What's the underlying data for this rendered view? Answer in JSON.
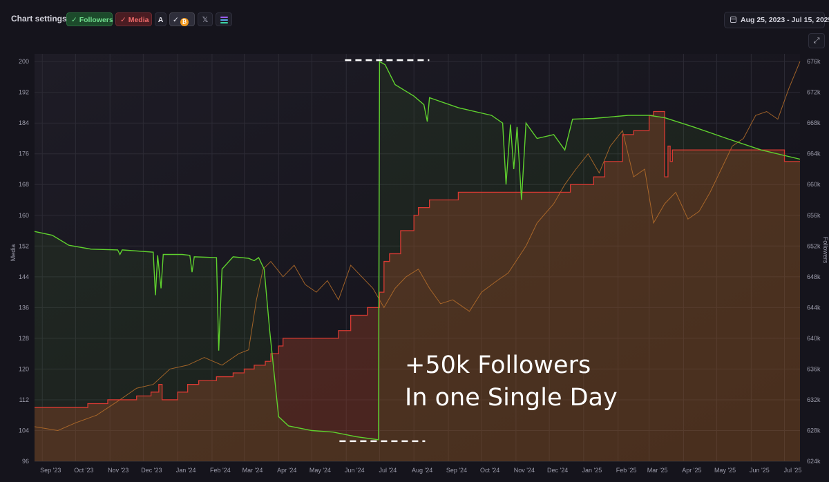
{
  "header": {
    "settings_label": "Chart settings:",
    "followers_label": "Followers",
    "media_label": "Media",
    "a_label": "A",
    "coin_check": "✓",
    "x_label": "𝕏",
    "date_range": "Aug 25, 2023 - Jul 15, 2025",
    "expand_icon": "⤢"
  },
  "colors": {
    "followers": "#5fd12e",
    "media": "#d93a33",
    "media_fill": "#8a3a26",
    "price": "#b8702a",
    "annotation": "#ffffff",
    "grid": "#2c2b35",
    "background": "#15141c"
  },
  "annotation": {
    "line1": "+50k Followers",
    "line2": "In one Single Day"
  },
  "chart_data": {
    "type": "line",
    "x_ticks": [
      "Sep '23",
      "Oct '23",
      "Nov '23",
      "Dec '23",
      "Jan '24",
      "Feb '24",
      "Mar '24",
      "Apr '24",
      "May '24",
      "Jun '24",
      "Jul '24",
      "Aug '24",
      "Sep '24",
      "Oct '24",
      "Nov '24",
      "Dec '24",
      "Jan '25",
      "Feb '25",
      "Mar '25",
      "Apr '25",
      "May '25",
      "Jun '25",
      "Jul '25"
    ],
    "xlim": [
      "2023-08-25",
      "2025-07-15"
    ],
    "y_left": {
      "label": "Media",
      "ticks": [
        96,
        104,
        112,
        120,
        128,
        136,
        144,
        152,
        160,
        168,
        176,
        184,
        192,
        200
      ],
      "ylim": [
        96,
        202
      ]
    },
    "y_right": {
      "label": "Followers",
      "ticks": [
        "624k",
        "628k",
        "632k",
        "636k",
        "640k",
        "644k",
        "648k",
        "652k",
        "656k",
        "660k",
        "664k",
        "668k",
        "672k",
        "676k"
      ],
      "ylim": [
        624,
        677
      ]
    },
    "grid": true,
    "series": [
      {
        "name": "Followers",
        "axis": "right",
        "unit": "k",
        "points": [
          [
            "2023-08-25",
            653.9
          ],
          [
            "2023-09-10",
            653.4
          ],
          [
            "2023-09-25",
            652.1
          ],
          [
            "2023-10-15",
            651.6
          ],
          [
            "2023-11-08",
            651.5
          ],
          [
            "2023-11-10",
            650.9
          ],
          [
            "2023-11-12",
            651.5
          ],
          [
            "2023-12-10",
            651.2
          ],
          [
            "2023-12-12",
            645.6
          ],
          [
            "2023-12-14",
            650.8
          ],
          [
            "2023-12-17",
            646.5
          ],
          [
            "2023-12-19",
            650.9
          ],
          [
            "2024-01-05",
            650.9
          ],
          [
            "2024-01-12",
            650.8
          ],
          [
            "2024-01-14",
            648.6
          ],
          [
            "2024-01-16",
            650.6
          ],
          [
            "2024-02-05",
            650.5
          ],
          [
            "2024-02-07",
            638.4
          ],
          [
            "2024-02-10",
            649.0
          ],
          [
            "2024-02-20",
            650.6
          ],
          [
            "2024-03-05",
            650.4
          ],
          [
            "2024-03-10",
            650.1
          ],
          [
            "2024-03-14",
            650.5
          ],
          [
            "2024-03-19",
            649.0
          ],
          [
            "2024-03-24",
            641.0
          ],
          [
            "2024-04-01",
            629.8
          ],
          [
            "2024-04-10",
            628.6
          ],
          [
            "2024-05-01",
            628.0
          ],
          [
            "2024-05-20",
            627.8
          ],
          [
            "2024-06-10",
            627.2
          ],
          [
            "2024-06-30",
            626.8
          ],
          [
            "2024-07-01",
            676.0
          ],
          [
            "2024-07-06",
            675.6
          ],
          [
            "2024-07-15",
            673.0
          ],
          [
            "2024-08-01",
            671.5
          ],
          [
            "2024-08-10",
            670.4
          ],
          [
            "2024-08-13",
            668.2
          ],
          [
            "2024-08-15",
            671.3
          ],
          [
            "2024-09-10",
            670.0
          ],
          [
            "2024-10-10",
            669.0
          ],
          [
            "2024-10-20",
            668.0
          ],
          [
            "2024-10-23",
            660.0
          ],
          [
            "2024-10-27",
            667.8
          ],
          [
            "2024-10-30",
            662.0
          ],
          [
            "2024-11-02",
            667.5
          ],
          [
            "2024-11-06",
            658.0
          ],
          [
            "2024-11-10",
            668.0
          ],
          [
            "2024-11-20",
            666.0
          ],
          [
            "2024-12-05",
            666.5
          ],
          [
            "2024-12-15",
            664.5
          ],
          [
            "2024-12-22",
            668.5
          ],
          [
            "2025-01-10",
            668.6
          ],
          [
            "2025-02-10",
            669.0
          ],
          [
            "2025-03-01",
            669.0
          ],
          [
            "2025-03-15",
            668.7
          ],
          [
            "2025-04-10",
            667.5
          ],
          [
            "2025-05-10",
            666.0
          ],
          [
            "2025-06-10",
            664.5
          ],
          [
            "2025-07-15",
            663.3
          ]
        ]
      },
      {
        "name": "Media",
        "axis": "left",
        "style": "step-area",
        "points": [
          [
            "2023-08-25",
            110
          ],
          [
            "2023-10-10",
            110
          ],
          [
            "2023-10-12",
            111
          ],
          [
            "2023-10-28",
            111
          ],
          [
            "2023-10-30",
            112
          ],
          [
            "2023-11-20",
            112
          ],
          [
            "2023-11-25",
            113
          ],
          [
            "2023-12-08",
            114
          ],
          [
            "2023-12-15",
            116
          ],
          [
            "2023-12-18",
            112
          ],
          [
            "2024-01-01",
            114
          ],
          [
            "2024-01-10",
            116
          ],
          [
            "2024-01-20",
            117
          ],
          [
            "2024-02-05",
            118
          ],
          [
            "2024-02-20",
            119
          ],
          [
            "2024-03-01",
            120
          ],
          [
            "2024-03-10",
            121
          ],
          [
            "2024-03-20",
            122
          ],
          [
            "2024-03-25",
            124
          ],
          [
            "2024-04-01",
            126
          ],
          [
            "2024-04-05",
            128
          ],
          [
            "2024-05-10",
            128
          ],
          [
            "2024-05-25",
            130
          ],
          [
            "2024-06-05",
            134
          ],
          [
            "2024-06-20",
            136
          ],
          [
            "2024-07-01",
            140
          ],
          [
            "2024-07-05",
            148
          ],
          [
            "2024-07-10",
            150
          ],
          [
            "2024-07-20",
            156
          ],
          [
            "2024-08-01",
            160
          ],
          [
            "2024-08-05",
            162
          ],
          [
            "2024-08-15",
            164
          ],
          [
            "2024-09-01",
            164
          ],
          [
            "2024-09-10",
            166
          ],
          [
            "2024-09-20",
            166
          ],
          [
            "2024-10-01",
            166
          ],
          [
            "2024-11-15",
            166
          ],
          [
            "2024-12-20",
            168
          ],
          [
            "2025-01-10",
            170
          ],
          [
            "2025-01-20",
            174
          ],
          [
            "2025-02-01",
            174
          ],
          [
            "2025-02-05",
            181
          ],
          [
            "2025-02-15",
            182
          ],
          [
            "2025-03-01",
            186
          ],
          [
            "2025-03-05",
            187
          ],
          [
            "2025-03-10",
            187
          ],
          [
            "2025-03-15",
            170
          ],
          [
            "2025-03-18",
            178
          ],
          [
            "2025-03-20",
            174
          ],
          [
            "2025-03-22",
            177
          ],
          [
            "2025-04-01",
            177
          ],
          [
            "2025-05-01",
            177
          ],
          [
            "2025-06-15",
            177
          ],
          [
            "2025-07-01",
            174
          ],
          [
            "2025-07-15",
            174
          ]
        ]
      },
      {
        "name": "Price",
        "axis": "left",
        "points": [
          [
            "2023-08-25",
            105
          ],
          [
            "2023-09-15",
            104
          ],
          [
            "2023-10-01",
            106
          ],
          [
            "2023-10-20",
            108
          ],
          [
            "2023-11-10",
            112
          ],
          [
            "2023-11-25",
            115
          ],
          [
            "2023-12-10",
            116
          ],
          [
            "2023-12-25",
            120
          ],
          [
            "2024-01-10",
            121
          ],
          [
            "2024-01-25",
            123
          ],
          [
            "2024-02-10",
            121
          ],
          [
            "2024-02-25",
            124
          ],
          [
            "2024-03-05",
            125
          ],
          [
            "2024-03-12",
            138
          ],
          [
            "2024-03-18",
            146
          ],
          [
            "2024-03-25",
            148
          ],
          [
            "2024-04-05",
            144
          ],
          [
            "2024-04-15",
            147
          ],
          [
            "2024-04-25",
            142
          ],
          [
            "2024-05-05",
            140
          ],
          [
            "2024-05-15",
            143
          ],
          [
            "2024-05-25",
            138
          ],
          [
            "2024-06-05",
            147
          ],
          [
            "2024-06-15",
            144
          ],
          [
            "2024-06-25",
            141
          ],
          [
            "2024-07-05",
            136
          ],
          [
            "2024-07-15",
            141
          ],
          [
            "2024-07-25",
            144
          ],
          [
            "2024-08-05",
            146
          ],
          [
            "2024-08-15",
            141
          ],
          [
            "2024-08-25",
            137
          ],
          [
            "2024-09-05",
            138
          ],
          [
            "2024-09-20",
            135
          ],
          [
            "2024-10-01",
            140
          ],
          [
            "2024-10-15",
            143
          ],
          [
            "2024-10-25",
            145
          ],
          [
            "2024-11-10",
            152
          ],
          [
            "2024-11-20",
            158
          ],
          [
            "2024-12-05",
            163
          ],
          [
            "2024-12-15",
            168
          ],
          [
            "2024-12-25",
            172
          ],
          [
            "2025-01-05",
            176
          ],
          [
            "2025-01-15",
            171
          ],
          [
            "2025-01-25",
            178
          ],
          [
            "2025-02-05",
            182
          ],
          [
            "2025-02-15",
            170
          ],
          [
            "2025-02-25",
            172
          ],
          [
            "2025-03-05",
            158
          ],
          [
            "2025-03-15",
            163
          ],
          [
            "2025-03-25",
            166
          ],
          [
            "2025-04-05",
            159
          ],
          [
            "2025-04-15",
            161
          ],
          [
            "2025-04-25",
            166
          ],
          [
            "2025-05-05",
            172
          ],
          [
            "2025-05-15",
            178
          ],
          [
            "2025-05-25",
            180
          ],
          [
            "2025-06-05",
            186
          ],
          [
            "2025-06-15",
            187
          ],
          [
            "2025-06-25",
            185
          ],
          [
            "2025-07-05",
            193
          ],
          [
            "2025-07-15",
            200
          ]
        ]
      }
    ]
  }
}
